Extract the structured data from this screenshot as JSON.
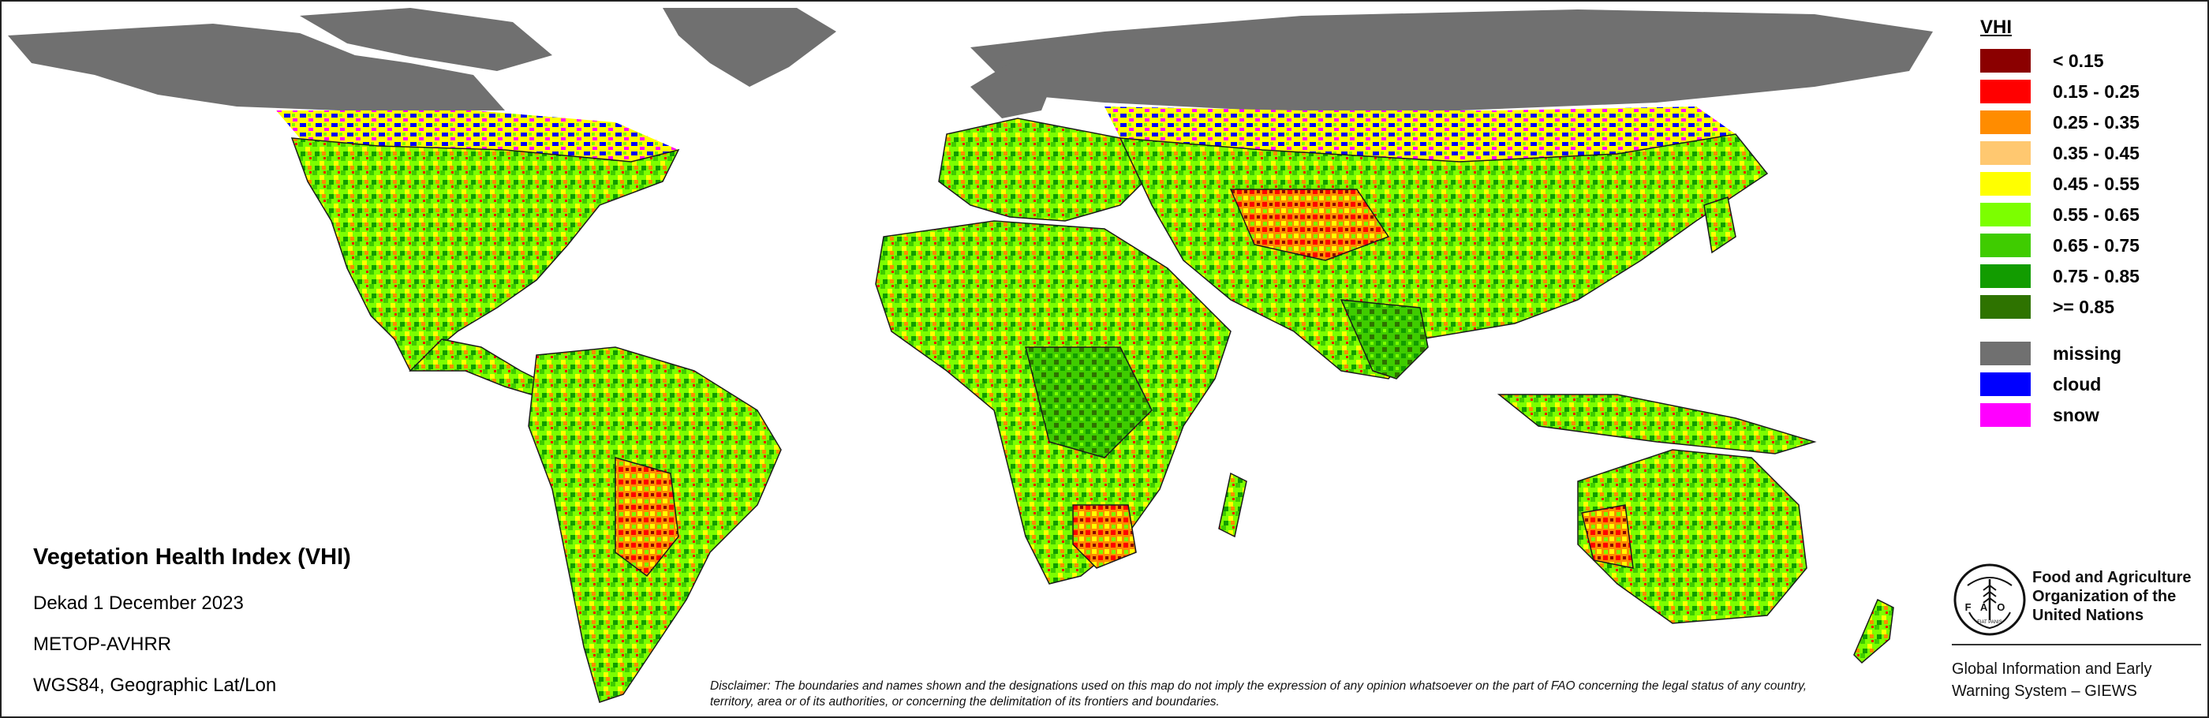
{
  "legend": {
    "title": "VHI",
    "classes": [
      {
        "label": "< 0.15",
        "color": "#8b0000"
      },
      {
        "label": "0.15 - 0.25",
        "color": "#ff0000"
      },
      {
        "label": "0.25 - 0.35",
        "color": "#ff8c00"
      },
      {
        "label": "0.35 - 0.45",
        "color": "#ffc870"
      },
      {
        "label": "0.45 - 0.55",
        "color": "#ffff00"
      },
      {
        "label": "0.55 - 0.65",
        "color": "#7cff00"
      },
      {
        "label": "0.65 - 0.75",
        "color": "#3fcc00"
      },
      {
        "label": "0.75 - 0.85",
        "color": "#129c00"
      },
      {
        "label": ">= 0.85",
        "color": "#2e7300"
      }
    ],
    "special": [
      {
        "label": "missing",
        "color": "#707070"
      },
      {
        "label": "cloud",
        "color": "#0000ff"
      },
      {
        "label": "snow",
        "color": "#ff00ff"
      }
    ]
  },
  "info": {
    "title": "Vegetation Health Index (VHI)",
    "dekad": "Dekad 1 December 2023",
    "sensor": "METOP-AVHRR",
    "projection": "WGS84, Geographic Lat/Lon"
  },
  "disclaimer": "Disclaimer: The boundaries and names shown and the designations used on this map do not imply the expression of any opinion whatsoever on the part of FAO concerning the legal status of any country, territory, area or of its authorities, or concerning the delimitation of its frontiers and boundaries.",
  "organization": {
    "name_line1": "Food and Agriculture",
    "name_line2": "Organization of the",
    "name_line3": "United Nations",
    "system_line1": "Global Information and Early",
    "system_line2": "Warning System – GIEWS",
    "logo_letters": "FAO",
    "logo_motto": "FIAT PANIS"
  },
  "colors": {
    "missing": "#707070",
    "ocean": "#ffffff",
    "border": "#1a1a1a"
  }
}
